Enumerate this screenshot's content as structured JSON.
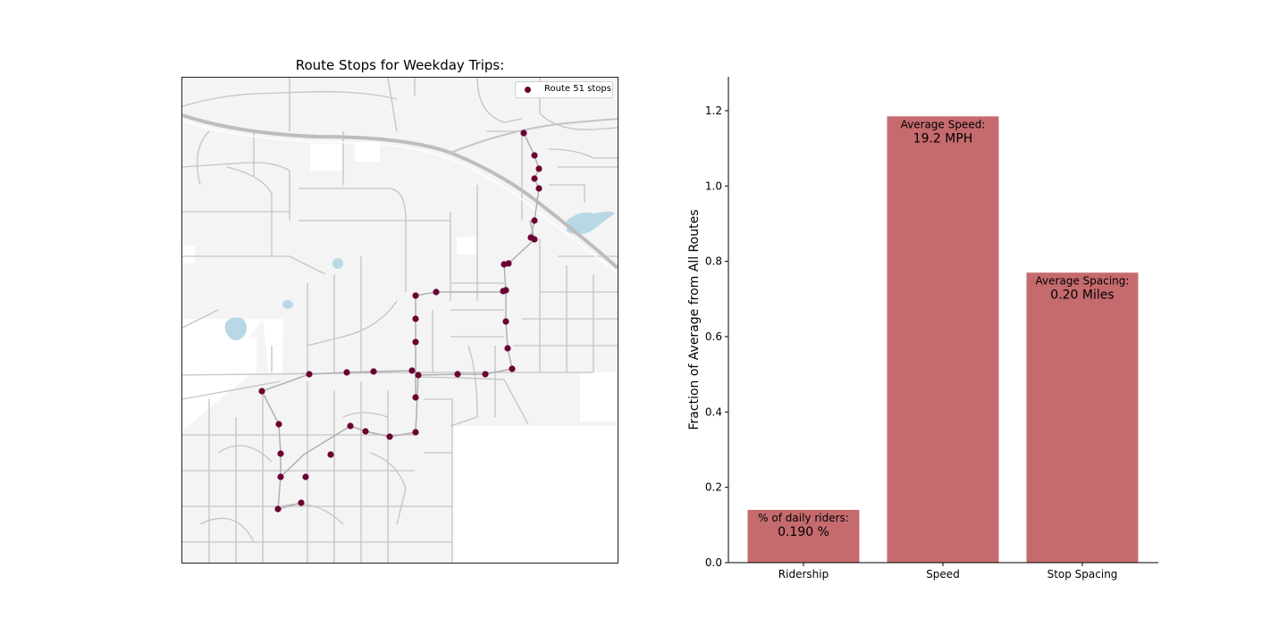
{
  "map": {
    "title": "Route Stops for Weekday Trips:",
    "legend_label": "Route 51 stops",
    "stop_color": "#6b0033",
    "road_color": "#c4c4c4",
    "land_color": "#f4f4f4",
    "water_color": "#b8d8e6"
  },
  "chart_data": {
    "type": "bar",
    "categories": [
      "Ridership",
      "Speed",
      "Stop Spacing"
    ],
    "values": [
      0.14,
      1.185,
      0.77
    ],
    "bar_annotations": [
      {
        "label": "% of daily riders:",
        "value": "0.190 %"
      },
      {
        "label": "Average Speed:",
        "value": "19.2 MPH"
      },
      {
        "label": "Average Spacing:",
        "value": "0.20 Miles"
      }
    ],
    "ylabel": "Fraction of Average from All Routes",
    "xlabel": "",
    "ylim": [
      0,
      1.29
    ],
    "yticks": [
      "0.0",
      "0.2",
      "0.4",
      "0.6",
      "0.8",
      "1.0",
      "1.2"
    ],
    "bar_color": "#c56b6e",
    "grid": false
  }
}
